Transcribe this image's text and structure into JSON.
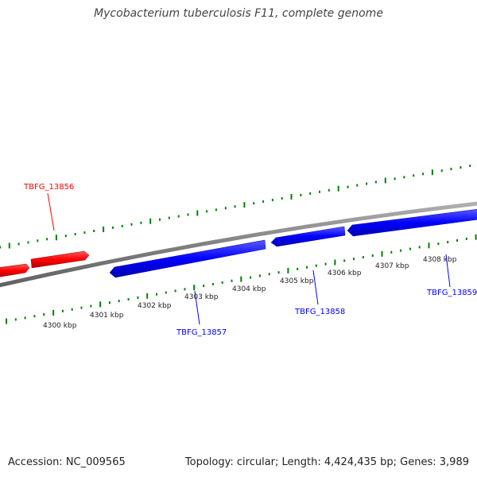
{
  "title": "Mycobacterium tuberculosis F11, complete genome",
  "footer": {
    "accession": "Accession: NC_009565",
    "summary": "Topology: circular; Length: 4,424,435 bp; Genes: 3,989"
  },
  "colors": {
    "forward_strand": "#ff0000",
    "reverse_strand": "#0000ff",
    "backbone": "#808080",
    "ticks": "#008000",
    "text": "#222222"
  },
  "scale_labels": [
    "4300 kbp",
    "4301 kbp",
    "4302 kbp",
    "4303 kbp",
    "4304 kbp",
    "4305 kbp",
    "4306 kbp",
    "4307 kbp",
    "4308 kbp"
  ],
  "gene_labels": [
    {
      "name": "TBFG_13856",
      "strand": "forward"
    },
    {
      "name": "TBFG_13857",
      "strand": "reverse"
    },
    {
      "name": "TBFG_13858",
      "strand": "reverse"
    },
    {
      "name": "TBFG_13859",
      "strand": "reverse"
    }
  ]
}
